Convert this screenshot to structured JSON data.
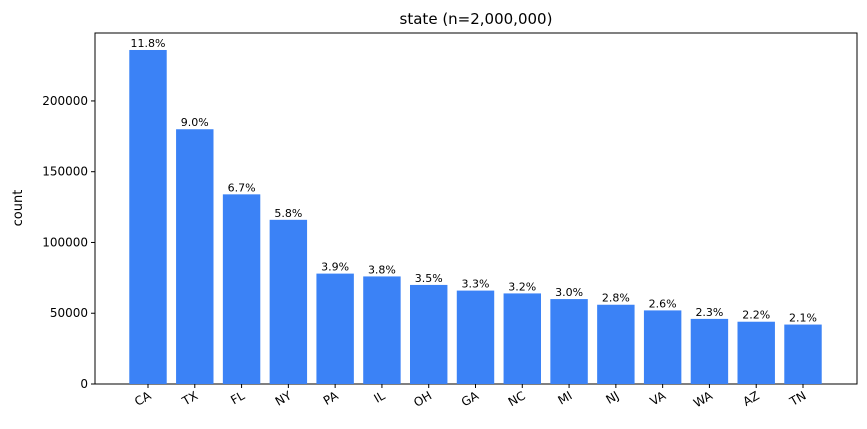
{
  "chart_data": {
    "type": "bar",
    "title": "state (n=2,000,000)",
    "y_label": "count",
    "categories": [
      "CA",
      "TX",
      "FL",
      "NY",
      "PA",
      "IL",
      "OH",
      "GA",
      "NC",
      "MI",
      "NJ",
      "VA",
      "WA",
      "AZ",
      "TN"
    ],
    "values": [
      236000,
      180000,
      134000,
      116000,
      78000,
      76000,
      70000,
      66000,
      64000,
      60000,
      56000,
      52000,
      46000,
      44000,
      42000
    ],
    "value_labels": [
      "11.8%",
      "9.0%",
      "6.7%",
      "5.8%",
      "3.9%",
      "3.8%",
      "3.5%",
      "3.3%",
      "3.2%",
      "3.0%",
      "2.8%",
      "2.6%",
      "2.3%",
      "2.2%",
      "2.1%"
    ],
    "color": "#3b82f6",
    "ylim": [
      0,
      248000
    ],
    "yticks": [
      0,
      50000,
      100000,
      150000,
      200000
    ],
    "grid": false
  }
}
